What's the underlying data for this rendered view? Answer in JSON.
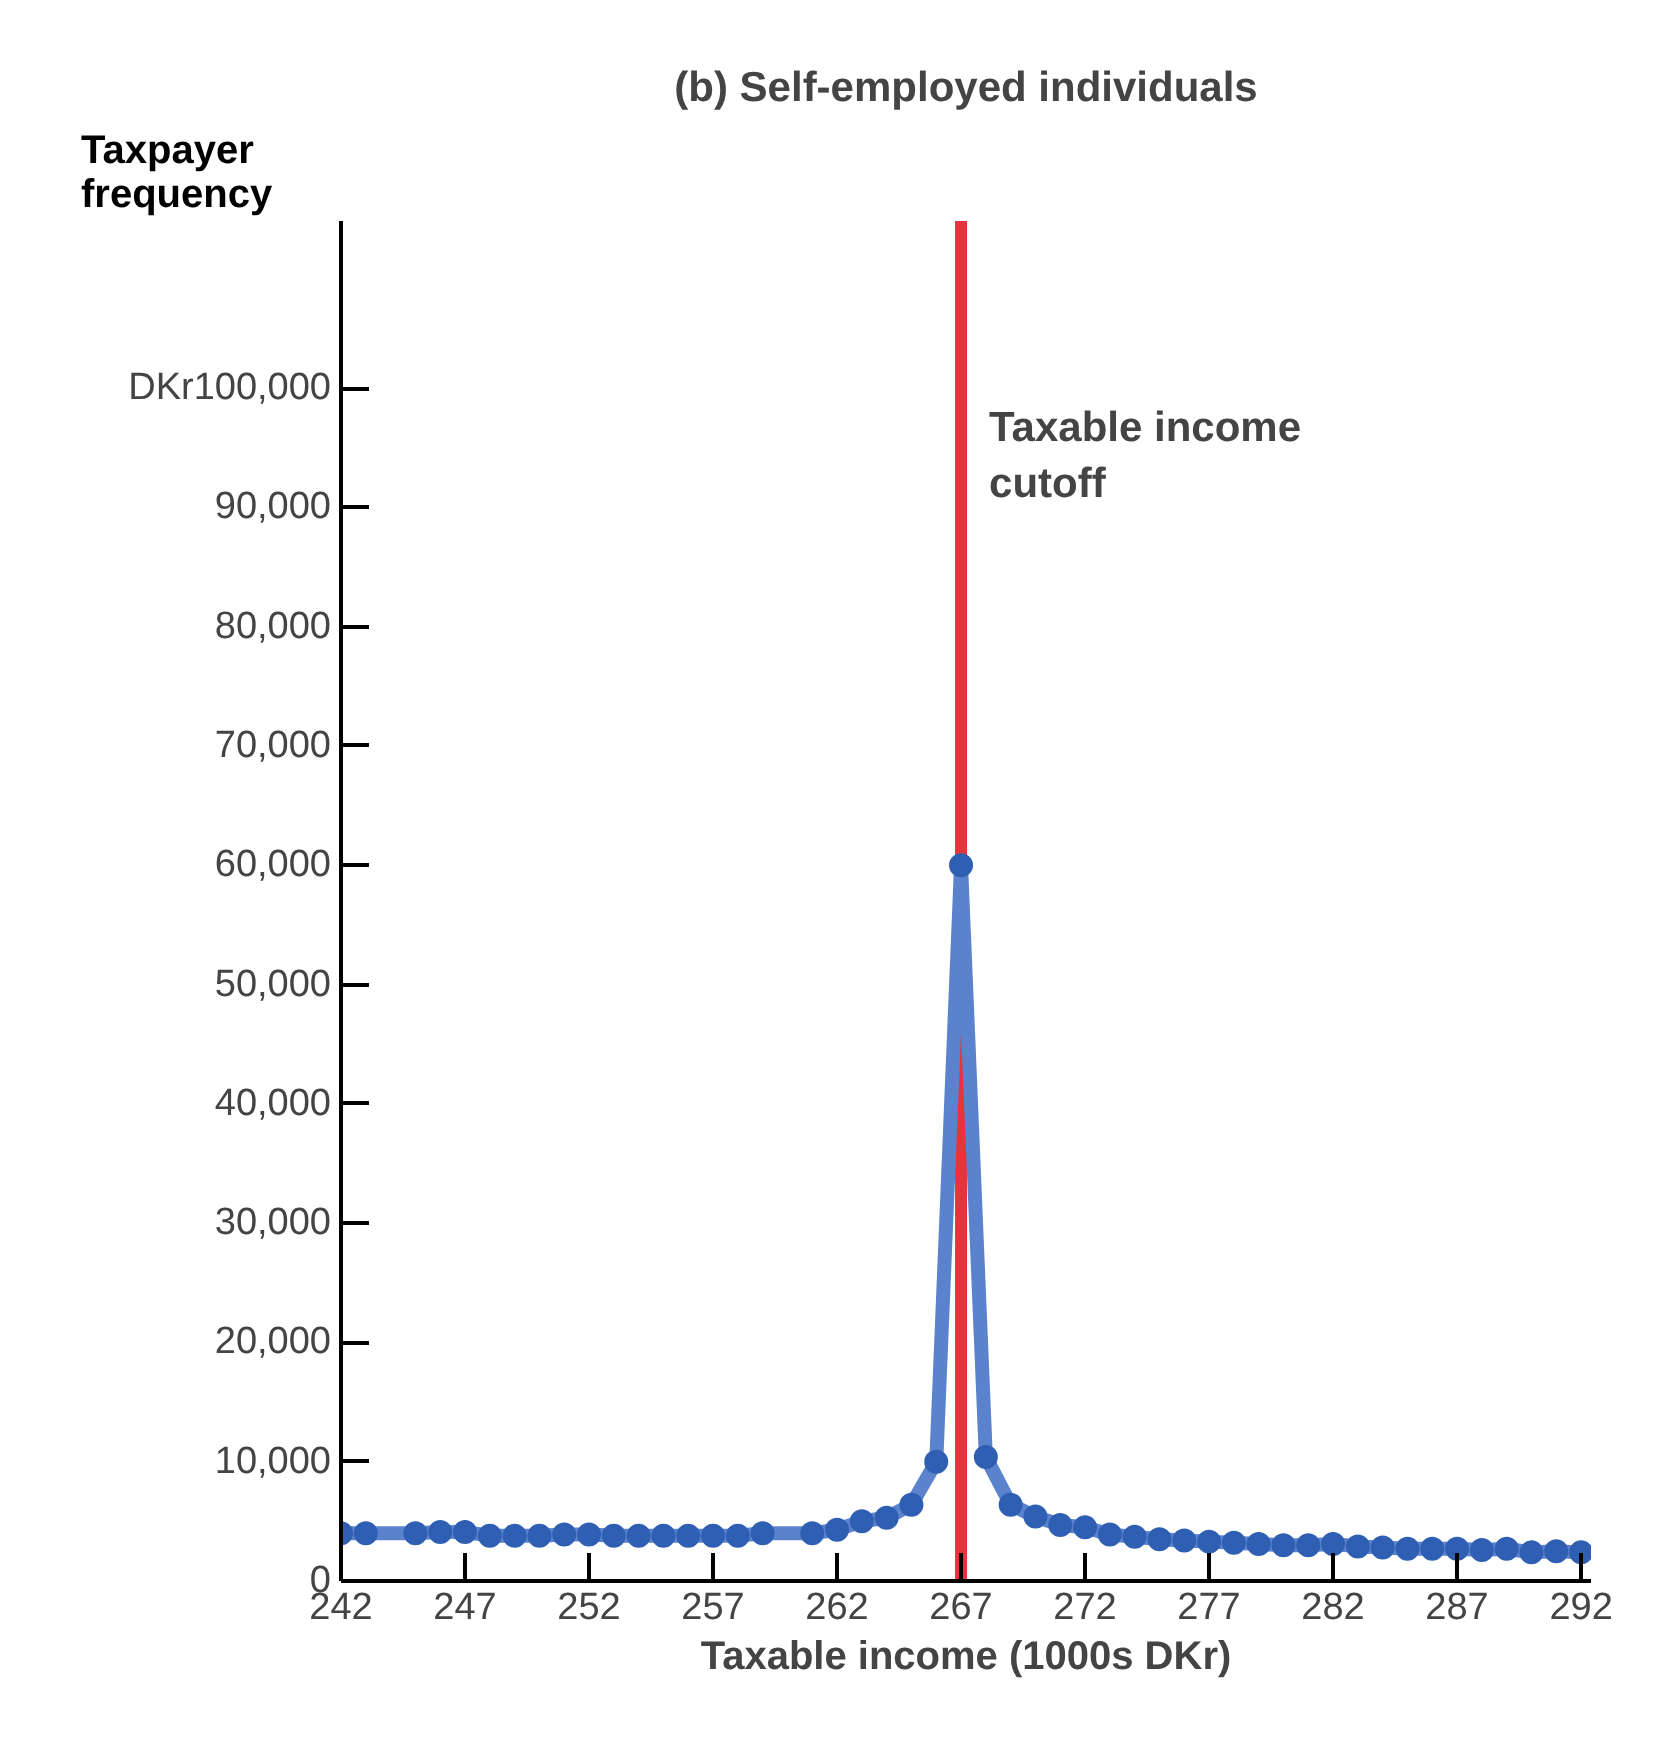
{
  "chart_data": {
    "type": "line",
    "title": "(b) Self-employed individuals",
    "xlabel": "Taxable income (1000s DKr)",
    "ylabel": "Taxpayer frequency",
    "x": [
      242,
      243,
      245,
      246,
      247,
      248,
      249,
      250,
      251,
      252,
      253,
      254,
      255,
      256,
      257,
      258,
      259,
      261,
      262,
      263,
      264,
      265,
      266,
      267,
      268,
      269,
      270,
      271,
      272,
      273,
      274,
      275,
      276,
      277,
      278,
      279,
      280,
      281,
      282,
      283,
      284,
      285,
      286,
      287,
      288,
      289,
      290,
      291,
      292
    ],
    "series": [
      {
        "color": "#2f5fb3",
        "values": [
          4000,
          4000,
          4000,
          4100,
          4100,
          3800,
          3800,
          3800,
          3900,
          3900,
          3800,
          3800,
          3800,
          3800,
          3800,
          3800,
          4000,
          4000,
          4300,
          5000,
          5300,
          6400,
          10000,
          60000,
          10400,
          6400,
          5400,
          4700,
          4500,
          3900,
          3700,
          3500,
          3400,
          3300,
          3200,
          3100,
          3000,
          3000,
          3100,
          2900,
          2800,
          2700,
          2700,
          2700,
          2600,
          2700,
          2400,
          2500,
          2400
        ]
      }
    ],
    "marker": "circle",
    "line_style": "solid",
    "grid": false,
    "xlim": [
      242,
      292.4
    ],
    "xticks": [
      242,
      247,
      252,
      257,
      262,
      267,
      272,
      277,
      282,
      287,
      292
    ],
    "ylim": [
      0,
      114000
    ],
    "yticks": [
      0,
      {
        "value": 10000,
        "label": "10,000"
      },
      {
        "value": 20000,
        "label": "20,000"
      },
      {
        "value": 30000,
        "label": "30,000"
      },
      {
        "value": 40000,
        "label": "40,000"
      },
      {
        "value": 50000,
        "label": "50,000"
      },
      {
        "value": 60000,
        "label": "60,000"
      },
      {
        "value": 70000,
        "label": "70,000"
      },
      {
        "value": 80000,
        "label": "80,000"
      },
      {
        "value": 90000,
        "label": "90,000"
      },
      {
        "value": 100000,
        "label": "DKr100,000"
      }
    ],
    "ref_lines": [
      {
        "axis": "x",
        "value": 267,
        "label": "Taxable income cutoff",
        "color": "#e8333c"
      }
    ]
  }
}
